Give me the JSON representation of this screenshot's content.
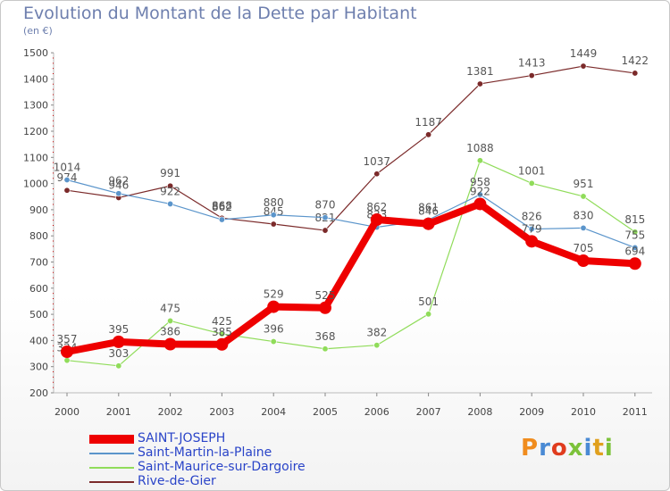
{
  "header": {
    "title": "Evolution du Montant de la Dette par Habitant",
    "subtitle": "(en €)"
  },
  "logo": {
    "text": "Proxiti",
    "letter_colors": [
      "#f08c1e",
      "#4a8ad4",
      "#e03c1e",
      "#7cc23a",
      "#4a8ad4",
      "#e0a01e",
      "#7cc23a"
    ]
  },
  "chart_data": {
    "type": "line",
    "title": "Evolution du Montant de la Dette par Habitant",
    "subtitle": "(en €)",
    "xlabel": "",
    "ylabel": "",
    "x": [
      "2000",
      "2001",
      "2002",
      "2003",
      "2004",
      "2005",
      "2006",
      "2007",
      "2008",
      "2009",
      "2010",
      "2011"
    ],
    "ylim": [
      200,
      1500
    ],
    "yticks": [
      200,
      300,
      400,
      500,
      600,
      700,
      800,
      900,
      1000,
      1100,
      1200,
      1300,
      1400,
      1500
    ],
    "grid": false,
    "legend_position": "bottom-left",
    "series": [
      {
        "name": "Rive-de-Gier",
        "color": "#7b2a2a",
        "values": [
          974,
          946,
          991,
          868,
          845,
          821,
          1037,
          1187,
          1381,
          1413,
          1449,
          1422
        ]
      },
      {
        "name": "Saint-Maurice-sur-Dargoire",
        "color": "#90dc5a",
        "values": [
          324,
          303,
          475,
          425,
          396,
          368,
          382,
          501,
          1088,
          1001,
          951,
          815
        ]
      },
      {
        "name": "Saint-Martin-la-Plaine",
        "color": "#5b95cb",
        "values": [
          1014,
          962,
          922,
          862,
          880,
          870,
          833,
          861,
          958,
          826,
          830,
          755
        ]
      },
      {
        "name": "SAINT-JOSEPH",
        "color": "#ee0000",
        "values": [
          357,
          395,
          386,
          385,
          529,
          525,
          862,
          846,
          922,
          779,
          705,
          694
        ]
      }
    ],
    "legend": [
      {
        "name": "SAINT-JOSEPH",
        "color": "#ee0000"
      },
      {
        "name": "Saint-Martin-la-Plaine",
        "color": "#5b95cb"
      },
      {
        "name": "Saint-Maurice-sur-Dargoire",
        "color": "#90dc5a"
      },
      {
        "name": "Rive-de-Gier",
        "color": "#7b2a2a"
      }
    ]
  }
}
